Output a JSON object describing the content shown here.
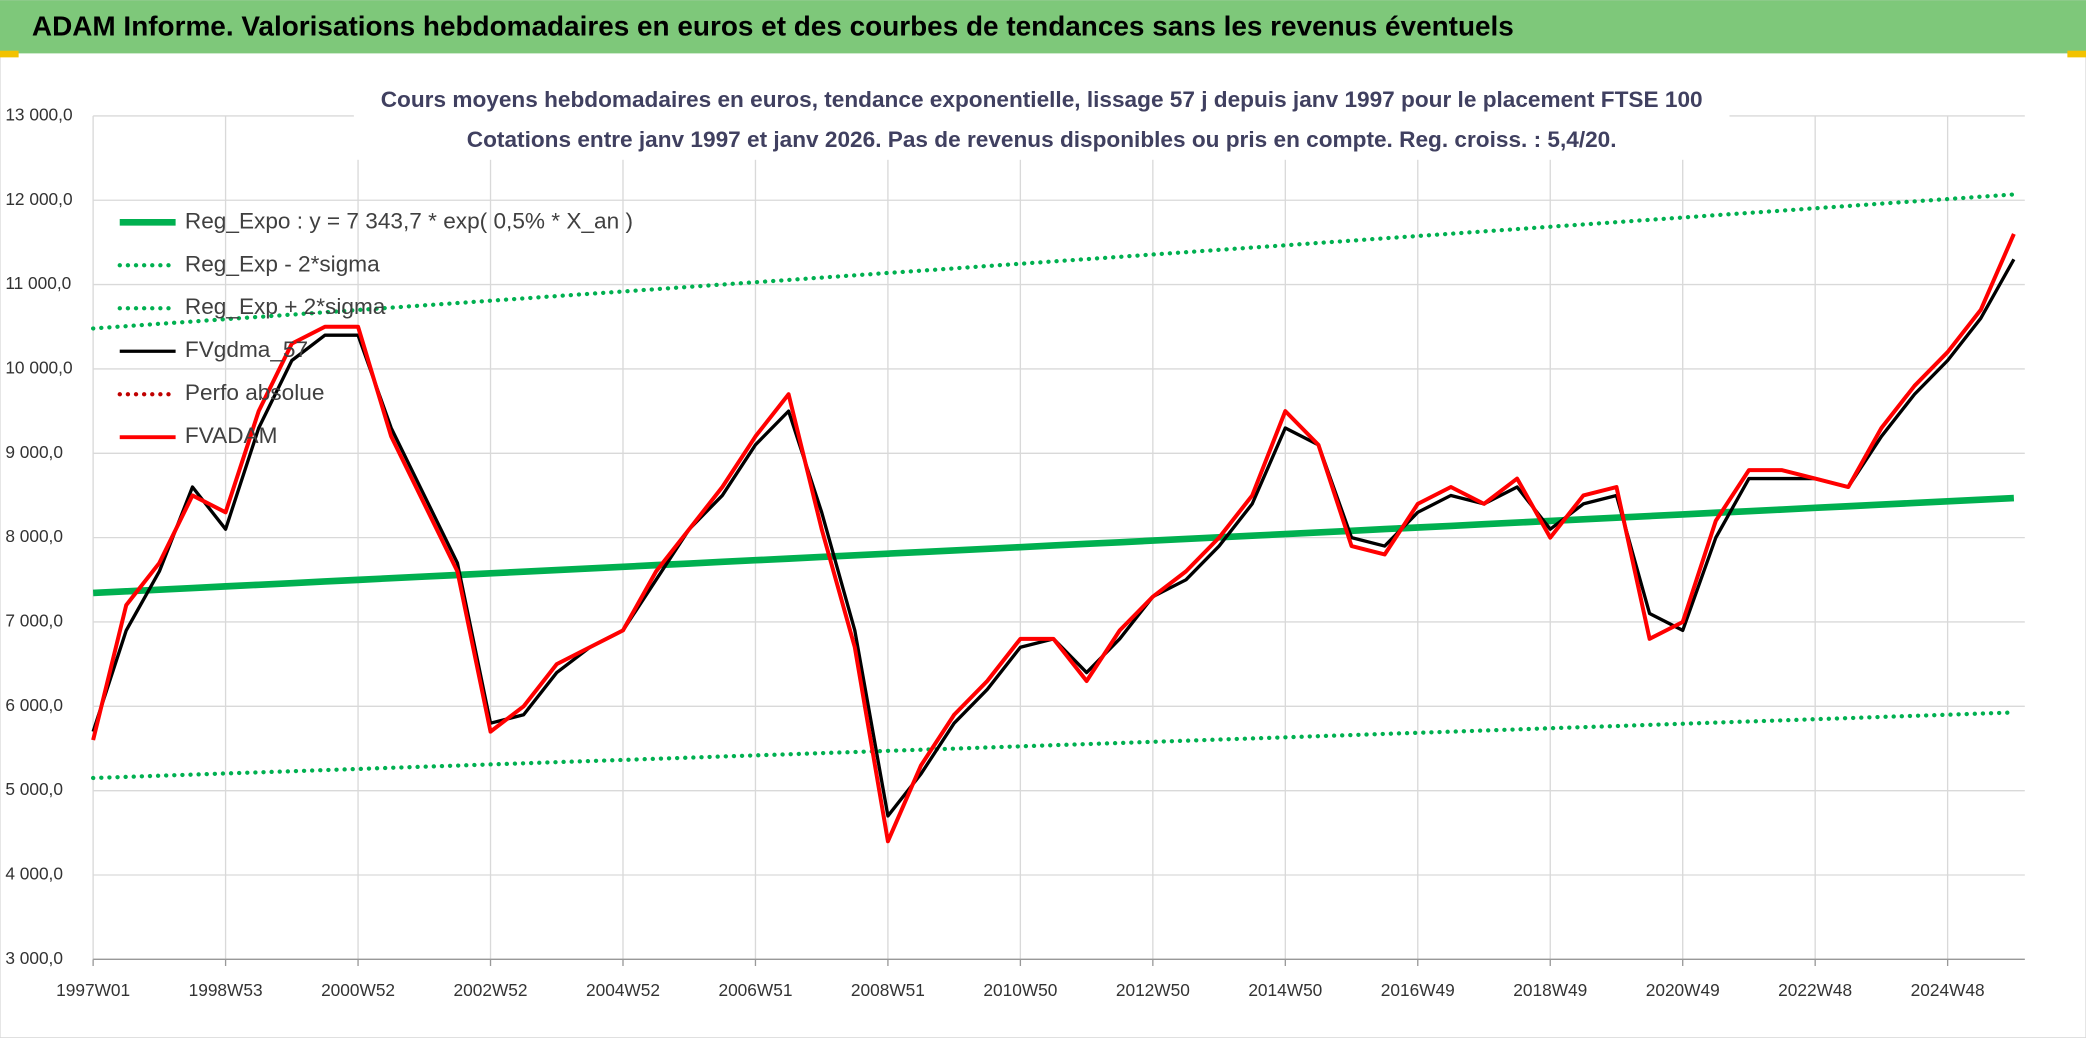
{
  "header": {
    "title": "ADAM Informe. Valorisations hebdomadaires en euros et des courbes de tendances sans les revenus éventuels"
  },
  "chart_data": {
    "type": "line",
    "title": "Cours moyens hebdomadaires en euros, tendance exponentielle, lissage 57 j depuis janv 1997 pour le placement FTSE 100",
    "subtitle": "Cotations entre janv 1997 et janv 2026. Pas de revenus disponibles ou pris en compte. Reg. croiss. : 5,4/20.",
    "categories": [
      "1997W01",
      null,
      null,
      null,
      "1998W53",
      null,
      null,
      null,
      "2000W52",
      null,
      null,
      null,
      "2002W52",
      null,
      null,
      null,
      "2004W52",
      null,
      null,
      null,
      "2006W51",
      null,
      null,
      null,
      "2008W51",
      null,
      null,
      null,
      "2010W50",
      null,
      null,
      null,
      "2012W50",
      null,
      null,
      null,
      "2014W50",
      null,
      null,
      null,
      "2016W49",
      null,
      null,
      null,
      "2018W49",
      null,
      null,
      null,
      "2020W49",
      null,
      null,
      null,
      "2022W48",
      null,
      null,
      null,
      "2024W48",
      null,
      null
    ],
    "ylim": [
      3000,
      13000
    ],
    "yticks": [
      {
        "value": 3000,
        "label": "3 000,0"
      },
      {
        "value": 4000,
        "label": "4 000,0"
      },
      {
        "value": 5000,
        "label": "5 000,0"
      },
      {
        "value": 6000,
        "label": "6 000,0"
      },
      {
        "value": 7000,
        "label": "7 000,0"
      },
      {
        "value": 8000,
        "label": "8 000,0"
      },
      {
        "value": 9000,
        "label": "9 000,0"
      },
      {
        "value": 10000,
        "label": "10 000,0"
      },
      {
        "value": 11000,
        "label": "11 000,0"
      },
      {
        "value": 12000,
        "label": "12 000,0"
      },
      {
        "value": 13000,
        "label": "13 000,0"
      }
    ],
    "grid": true,
    "legend": "top-left",
    "series": [
      {
        "name": "Reg_Expo : y = 7 343,7 * exp( 0,5% *  X_an )",
        "color": "#00b050",
        "style": "solid",
        "values": [
          7344,
          7363,
          7383,
          7402,
          7422,
          7441,
          7460,
          7480,
          7499,
          7519,
          7538,
          7557,
          7577,
          7596,
          7616,
          7635,
          7654,
          7674,
          7693,
          7713,
          7732,
          7751,
          7771,
          7790,
          7810,
          7829,
          7848,
          7868,
          7887,
          7907,
          7926,
          7945,
          7965,
          7984,
          8004,
          8023,
          8042,
          8062,
          8081,
          8101,
          8120,
          8139,
          8159,
          8178,
          8198,
          8217,
          8236,
          8256,
          8275,
          8295,
          8314,
          8333,
          8353,
          8372,
          8392,
          8411,
          8430,
          8450,
          8469
        ]
      },
      {
        "name": "Reg_Exp - 2*sigma",
        "color": "#00b050",
        "style": "dotted",
        "values": [
          5150,
          5163,
          5177,
          5190,
          5204,
          5217,
          5230,
          5244,
          5257,
          5271,
          5284,
          5297,
          5311,
          5324,
          5338,
          5351,
          5364,
          5378,
          5391,
          5405,
          5418,
          5431,
          5445,
          5458,
          5472,
          5485,
          5498,
          5512,
          5525,
          5539,
          5552,
          5565,
          5579,
          5592,
          5606,
          5619,
          5632,
          5646,
          5659,
          5673,
          5686,
          5699,
          5713,
          5726,
          5740,
          5753,
          5766,
          5780,
          5793,
          5807,
          5820,
          5833,
          5847,
          5860,
          5874,
          5887,
          5900,
          5914,
          5927
        ]
      },
      {
        "name": "Reg_Exp + 2*sigma",
        "color": "#00b050",
        "style": "dotted",
        "values": [
          10480,
          10507,
          10535,
          10562,
          10590,
          10617,
          10644,
          10672,
          10699,
          10727,
          10754,
          10781,
          10809,
          10836,
          10864,
          10891,
          10918,
          10946,
          10973,
          11001,
          11028,
          11055,
          11083,
          11110,
          11138,
          11165,
          11192,
          11220,
          11247,
          11275,
          11302,
          11329,
          11357,
          11384,
          11412,
          11439,
          11466,
          11494,
          11521,
          11549,
          11576,
          11603,
          11631,
          11658,
          11686,
          11713,
          11740,
          11768,
          11795,
          11823,
          11850,
          11877,
          11905,
          11932,
          11960,
          11987,
          12014,
          12042,
          12069
        ]
      },
      {
        "name": "FVgdma_57",
        "color": "#000000",
        "style": "solid",
        "values": [
          5700,
          6900,
          7600,
          8600,
          8100,
          9300,
          10100,
          10400,
          10400,
          9300,
          8500,
          7700,
          5800,
          5900,
          6400,
          6700,
          6900,
          7500,
          8100,
          8500,
          9100,
          9500,
          8300,
          6900,
          4700,
          5200,
          5800,
          6200,
          6700,
          6800,
          6400,
          6800,
          7300,
          7500,
          7900,
          8400,
          9300,
          9100,
          8000,
          7900,
          8300,
          8500,
          8400,
          8600,
          8100,
          8400,
          8500,
          7100,
          6900,
          8000,
          8700,
          8700,
          8700,
          8600,
          9200,
          9700,
          10100,
          10600,
          11300
        ]
      },
      {
        "name": "Perfo absolue",
        "color": "#c00000",
        "style": "dotted",
        "values": [
          null,
          null,
          null,
          null,
          null,
          null,
          null,
          null,
          null,
          null,
          null,
          null,
          null,
          null,
          null,
          null,
          null,
          null,
          null,
          null,
          null,
          null,
          null,
          null,
          null,
          null,
          null,
          null,
          null,
          null,
          null,
          null,
          null,
          null,
          null,
          null,
          null,
          null,
          null,
          null,
          null,
          null,
          null,
          null,
          null,
          null,
          null,
          null,
          null,
          null,
          null,
          null,
          null,
          null,
          null,
          null,
          null,
          null,
          null
        ]
      },
      {
        "name": "FVADAM",
        "color": "#ff0000",
        "style": "solid",
        "values": [
          5600,
          7200,
          7700,
          8500,
          8300,
          9500,
          10300,
          10500,
          10500,
          9200,
          8400,
          7600,
          5700,
          6000,
          6500,
          6700,
          6900,
          7600,
          8100,
          8600,
          9200,
          9700,
          8100,
          6700,
          4400,
          5300,
          5900,
          6300,
          6800,
          6800,
          6300,
          6900,
          7300,
          7600,
          8000,
          8500,
          9500,
          9100,
          7900,
          7800,
          8400,
          8600,
          8400,
          8700,
          8000,
          8500,
          8600,
          6800,
          7000,
          8200,
          8800,
          8800,
          8700,
          8600,
          9300,
          9800,
          10200,
          10700,
          11600
        ]
      }
    ]
  }
}
